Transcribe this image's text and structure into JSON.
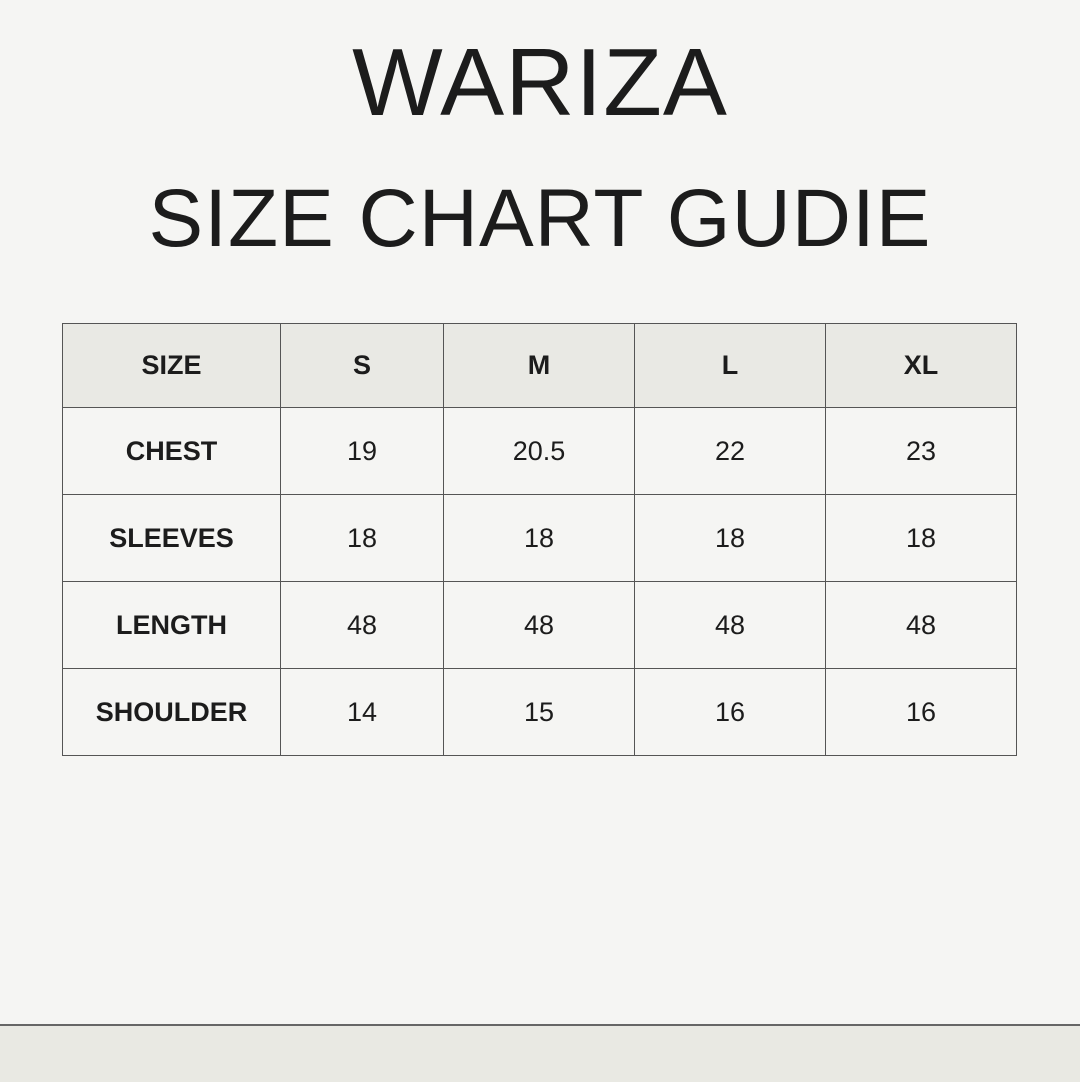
{
  "title": "WARIZA",
  "subtitle": "SIZE CHART GUDIE",
  "table": {
    "headers": [
      "SIZE",
      "S",
      "M",
      "L",
      "XL"
    ],
    "rows": [
      {
        "label": "CHEST",
        "values": [
          "19",
          "20.5",
          "22",
          "23"
        ]
      },
      {
        "label": "SLEEVES",
        "values": [
          "18",
          "18",
          "18",
          "18"
        ]
      },
      {
        "label": "LENGTH",
        "values": [
          "48",
          "48",
          "48",
          "48"
        ]
      },
      {
        "label": "SHOULDER",
        "values": [
          "14",
          "15",
          "16",
          "16"
        ]
      }
    ]
  },
  "colors": {
    "background": "#f5f5f3",
    "header_fill": "#e9e9e4",
    "text": "#1c1c1c"
  }
}
